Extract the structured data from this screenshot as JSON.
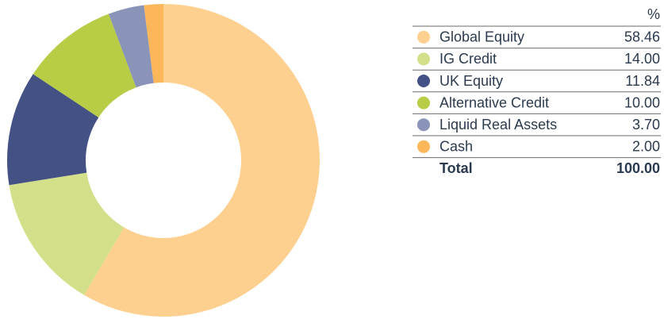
{
  "chart_data": {
    "type": "pie",
    "donut": true,
    "value_header": "%",
    "categories": [
      "Global Equity",
      "IG Credit",
      "UK Equity",
      "Alternative Credit",
      "Liquid Real Assets",
      "Cash"
    ],
    "values": [
      58.46,
      14,
      11.84,
      10,
      3.7,
      2
    ],
    "value_labels": [
      "58.46",
      "14.00",
      "11.84",
      "10.00",
      "3.70",
      "2.00"
    ],
    "colors": [
      "#fdd090",
      "#d4df8a",
      "#435185",
      "#b8cc46",
      "#8a93b8",
      "#fbb75a"
    ],
    "total": {
      "label": "Total",
      "value": "100.00"
    }
  }
}
